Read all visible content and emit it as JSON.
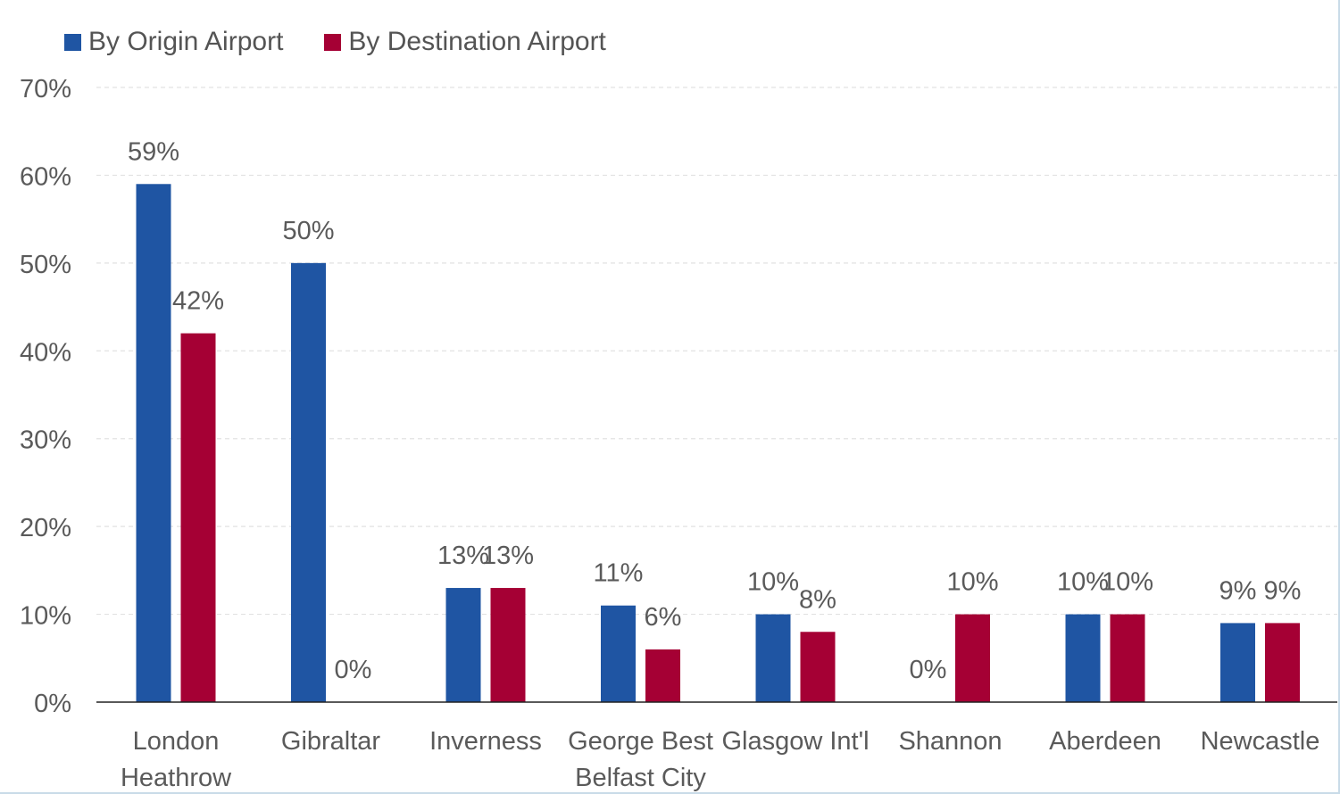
{
  "chart_data": {
    "type": "bar",
    "title": "",
    "xlabel": "",
    "ylabel": "",
    "ylim": [
      0,
      70
    ],
    "yticks": [
      0,
      10,
      20,
      30,
      40,
      50,
      60,
      70
    ],
    "ytick_labels": [
      "0%",
      "10%",
      "20%",
      "30%",
      "40%",
      "50%",
      "60%",
      "70%"
    ],
    "grid": true,
    "legend_position": "top-left",
    "categories": [
      [
        "London",
        "Heathrow"
      ],
      [
        "Gibraltar"
      ],
      [
        "Inverness"
      ],
      [
        "George Best",
        "Belfast City"
      ],
      [
        "Glasgow Int'l"
      ],
      [
        "Shannon"
      ],
      [
        "Aberdeen"
      ],
      [
        "Newcastle"
      ]
    ],
    "series": [
      {
        "name": "By Origin Airport",
        "color": "#1f55a3",
        "values": [
          59,
          50,
          13,
          11,
          10,
          0,
          10,
          9
        ],
        "labels": [
          "59%",
          "50%",
          "13%",
          "11%",
          "10%",
          "0%",
          "10%",
          "9%"
        ]
      },
      {
        "name": "By Destination Airport",
        "color": "#a50034",
        "values": [
          42,
          0,
          13,
          6,
          8,
          10,
          10,
          9
        ],
        "labels": [
          "42%",
          "0%",
          "13%",
          "6%",
          "8%",
          "10%",
          "10%",
          "9%"
        ]
      }
    ]
  }
}
